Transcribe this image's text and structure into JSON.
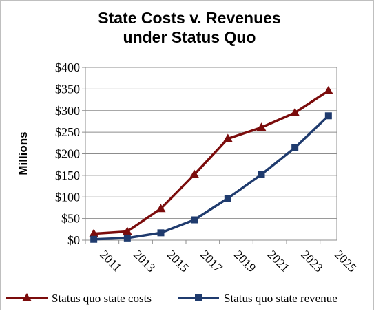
{
  "chart_data": {
    "type": "line",
    "title_lines": [
      "State Costs v. Revenues",
      "under Status Quo"
    ],
    "xlabel": "",
    "ylabel": "Millions",
    "categories": [
      "2011",
      "2013",
      "2015",
      "2017",
      "2019",
      "2021",
      "2023",
      "2025"
    ],
    "ylim": [
      0,
      400
    ],
    "yticks": [
      0,
      50,
      100,
      150,
      200,
      250,
      300,
      350,
      400
    ],
    "ytick_labels": [
      "$0",
      "$50",
      "$100",
      "$150",
      "$200",
      "$250",
      "$300",
      "$350",
      "$400"
    ],
    "grid": true,
    "legend_position": "bottom",
    "series": [
      {
        "name": "Status quo state costs",
        "color": "#7b0c0c",
        "marker": "triangle",
        "values": [
          15,
          20,
          73,
          152,
          235,
          261,
          295,
          346
        ]
      },
      {
        "name": "Status quo state revenue",
        "color": "#1f3b6e",
        "marker": "square",
        "values": [
          2,
          5,
          17,
          47,
          97,
          152,
          214,
          288
        ]
      }
    ]
  }
}
